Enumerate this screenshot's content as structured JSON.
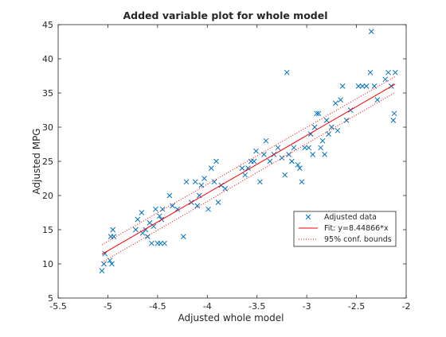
{
  "chart_data": {
    "type": "scatter",
    "title": "Added variable plot for whole model",
    "xlabel": "Adjusted whole model",
    "ylabel": "Adjusted MPG",
    "xlim": [
      -5.5,
      -2
    ],
    "ylim": [
      5,
      45
    ],
    "xticks": [
      -5.5,
      -5,
      -4.5,
      -4,
      -3.5,
      -3,
      -2.5,
      -2
    ],
    "xtick_labels": [
      "-5.5",
      "-5",
      "-4.5",
      "-4",
      "-3.5",
      "-3",
      "-2.5",
      "-2"
    ],
    "yticks": [
      5,
      10,
      15,
      20,
      25,
      30,
      35,
      40,
      45
    ],
    "ytick_labels": [
      "5",
      "10",
      "15",
      "20",
      "25",
      "30",
      "35",
      "40",
      "45"
    ],
    "grid": false,
    "legend_position": "lower-right",
    "colors": {
      "data": "#0072BD",
      "fit": "#FF0000",
      "bounds": "#FF0000",
      "axes": "#262626"
    },
    "series": [
      {
        "name": "Adjusted data",
        "style": "x-marker",
        "points": [
          [
            -5.06,
            9.0
          ],
          [
            -5.04,
            10.0
          ],
          [
            -5.03,
            11.5
          ],
          [
            -4.98,
            10.5
          ],
          [
            -4.97,
            14.0
          ],
          [
            -4.96,
            10.0
          ],
          [
            -4.95,
            15.0
          ],
          [
            -4.94,
            14.0
          ],
          [
            -4.72,
            15.0
          ],
          [
            -4.7,
            16.5
          ],
          [
            -4.66,
            17.5
          ],
          [
            -4.65,
            14.5
          ],
          [
            -4.62,
            15.0
          ],
          [
            -4.6,
            14.0
          ],
          [
            -4.58,
            16.0
          ],
          [
            -4.56,
            13.0
          ],
          [
            -4.54,
            15.5
          ],
          [
            -4.52,
            18.0
          ],
          [
            -4.5,
            13.0
          ],
          [
            -4.48,
            17.0
          ],
          [
            -4.47,
            13.0
          ],
          [
            -4.46,
            16.5
          ],
          [
            -4.45,
            18.0
          ],
          [
            -4.43,
            13.0
          ],
          [
            -4.38,
            20.0
          ],
          [
            -4.35,
            18.5
          ],
          [
            -4.3,
            18.0
          ],
          [
            -4.24,
            14.0
          ],
          [
            -4.21,
            22.0
          ],
          [
            -4.16,
            19.0
          ],
          [
            -4.12,
            22.0
          ],
          [
            -4.1,
            18.5
          ],
          [
            -4.08,
            20.0
          ],
          [
            -4.06,
            21.5
          ],
          [
            -4.03,
            22.5
          ],
          [
            -3.99,
            18.0
          ],
          [
            -3.96,
            24.0
          ],
          [
            -3.93,
            22.0
          ],
          [
            -3.91,
            25.0
          ],
          [
            -3.89,
            19.0
          ],
          [
            -3.86,
            21.5
          ],
          [
            -3.82,
            21.0
          ],
          [
            -3.65,
            24.0
          ],
          [
            -3.62,
            23.0
          ],
          [
            -3.59,
            24.0
          ],
          [
            -3.56,
            25.0
          ],
          [
            -3.53,
            25.0
          ],
          [
            -3.51,
            26.5
          ],
          [
            -3.47,
            22.0
          ],
          [
            -3.43,
            26.0
          ],
          [
            -3.41,
            28.0
          ],
          [
            -3.37,
            25.0
          ],
          [
            -3.33,
            26.0
          ],
          [
            -3.29,
            27.0
          ],
          [
            -3.25,
            25.5
          ],
          [
            -3.22,
            23.0
          ],
          [
            -3.2,
            38.0
          ],
          [
            -3.18,
            26.0
          ],
          [
            -3.15,
            25.0
          ],
          [
            -3.13,
            27.0
          ],
          [
            -3.09,
            24.5
          ],
          [
            -3.07,
            24.0
          ],
          [
            -3.05,
            22.0
          ],
          [
            -3.02,
            27.0
          ],
          [
            -2.98,
            27.0
          ],
          [
            -2.96,
            29.0
          ],
          [
            -2.94,
            26.0
          ],
          [
            -2.92,
            30.0
          ],
          [
            -2.9,
            32.0
          ],
          [
            -2.88,
            32.0
          ],
          [
            -2.86,
            27.0
          ],
          [
            -2.84,
            28.0
          ],
          [
            -2.82,
            26.0
          ],
          [
            -2.8,
            31.0
          ],
          [
            -2.78,
            29.0
          ],
          [
            -2.75,
            30.0
          ],
          [
            -2.71,
            33.5
          ],
          [
            -2.69,
            29.5
          ],
          [
            -2.66,
            34.0
          ],
          [
            -2.64,
            36.0
          ],
          [
            -2.6,
            31.0
          ],
          [
            -2.56,
            32.5
          ],
          [
            -2.48,
            36.0
          ],
          [
            -2.44,
            36.0
          ],
          [
            -2.4,
            36.0
          ],
          [
            -2.36,
            38.0
          ],
          [
            -2.35,
            44.0
          ],
          [
            -2.32,
            36.0
          ],
          [
            -2.29,
            34.0
          ],
          [
            -2.21,
            37.0
          ],
          [
            -2.18,
            38.0
          ],
          [
            -2.15,
            36.0
          ],
          [
            -2.13,
            31.0
          ],
          [
            -2.12,
            32.0
          ],
          [
            -2.11,
            38.0
          ]
        ]
      },
      {
        "name": "Fit: y=8.44866*x",
        "style": "line",
        "x": [
          -5.06,
          -2.11
        ],
        "y": [
          11.4,
          36.3
        ]
      },
      {
        "name": "95% conf. bounds",
        "style": "dotted-line",
        "upper": {
          "x": [
            -5.06,
            -2.11
          ],
          "y": [
            12.8,
            37.4
          ]
        },
        "lower": {
          "x": [
            -5.06,
            -2.11
          ],
          "y": [
            10.2,
            35.1
          ]
        }
      }
    ]
  }
}
